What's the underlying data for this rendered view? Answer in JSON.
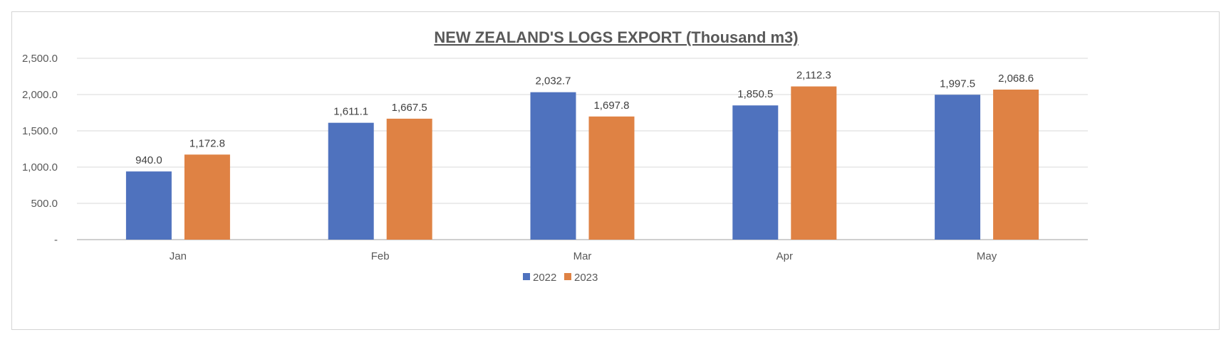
{
  "chart_data": {
    "type": "bar",
    "title": "NEW ZEALAND'S LOGS EXPORT (Thousand m3)",
    "xlabel": "",
    "ylabel": "",
    "categories": [
      "Jan",
      "Feb",
      "Mar",
      "Apr",
      "May"
    ],
    "series": [
      {
        "name": "2022",
        "color": "#4f72be",
        "values": [
          940.0,
          1611.1,
          2032.7,
          1850.5,
          1997.5
        ],
        "labels": [
          "940.0",
          "1,611.1",
          "2,032.7",
          "1,850.5",
          "1,997.5"
        ]
      },
      {
        "name": "2023",
        "color": "#df8244",
        "values": [
          1172.8,
          1667.5,
          1697.8,
          2112.3,
          2068.6
        ],
        "labels": [
          "1,172.8",
          "1,667.5",
          "1,697.8",
          "2,112.3",
          "2,068.6"
        ]
      }
    ],
    "ylim": [
      0,
      2500
    ],
    "yticks": [
      0,
      500,
      1000,
      1500,
      2000,
      2500
    ],
    "ytick_labels": [
      "-",
      "500.0",
      "1,000.0",
      "1,500.0",
      "2,000.0",
      "2,500.0"
    ],
    "grid": true,
    "legend_position": "bottom",
    "colors": {
      "grid": "#d9d9d9",
      "axis": "#bfbfbf",
      "text": "#595959"
    }
  }
}
